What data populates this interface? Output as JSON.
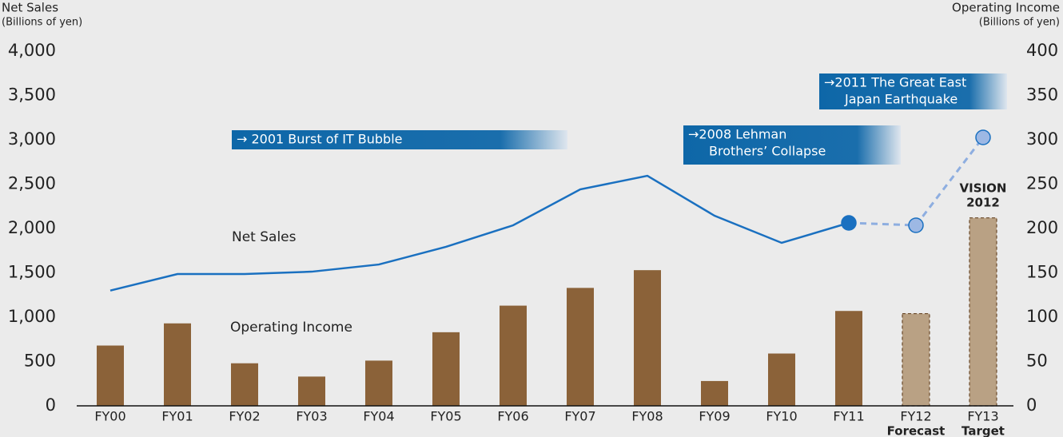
{
  "chart_data": {
    "type": "bar_line",
    "y_label": [
      "Net Sales",
      "(Billions of yen)"
    ],
    "y2_label": [
      "Operating Income",
      "(Billions of yen)"
    ],
    "categories": [
      "FY00",
      "FY01",
      "FY02",
      "FY03",
      "FY04",
      "FY05",
      "FY06",
      "FY07",
      "FY08",
      "FY09",
      "FY10",
      "FY11",
      "FY12",
      "FY13"
    ],
    "category_sublabels": [
      null,
      null,
      null,
      null,
      null,
      null,
      null,
      null,
      null,
      null,
      null,
      null,
      "Forecast",
      "Target"
    ],
    "ylim": [
      0,
      4000
    ],
    "yticks": [
      0,
      {
        "value": 500,
        "label": "500"
      },
      {
        "value": 1000,
        "label": "1,000"
      },
      {
        "value": 1500,
        "label": "1,500"
      },
      {
        "value": 2000,
        "label": "2,000"
      },
      {
        "value": 2500,
        "label": "2,500"
      },
      {
        "value": 3000,
        "label": "3,000"
      },
      {
        "value": 3500,
        "label": "3,500"
      },
      {
        "value": 4000,
        "label": "4,000"
      }
    ],
    "y2lim": [
      0,
      400
    ],
    "y2ticks": [
      0,
      50,
      100,
      150,
      200,
      250,
      300,
      350,
      400
    ],
    "series": [
      {
        "name": "Operating Income",
        "kind": "bar",
        "axis": "y2",
        "color": "#8b6239",
        "values": [
          68,
          93,
          48,
          33,
          51,
          83,
          113,
          133,
          153,
          28,
          59,
          107,
          104,
          212
        ],
        "colors": [
          "#8b6239",
          "#8b6239",
          "#8b6239",
          "#8b6239",
          "#8b6239",
          "#8b6239",
          "#8b6239",
          "#8b6239",
          "#8b6239",
          "#8b6239",
          "#8b6239",
          "#8b6239",
          "#b9a184",
          "#b9a184"
        ]
      },
      {
        "name": "Net Sales",
        "kind": "line",
        "axis": "y",
        "color": "#1a70c0",
        "values": [
          1300,
          1486,
          1486,
          1513,
          1594,
          1793,
          2036,
          2441,
          2594,
          2144,
          1838,
          2063,
          null,
          null
        ]
      },
      {
        "kind": "line",
        "dashed": true,
        "axis": "y",
        "color": "#8eaee0",
        "values": [
          null,
          null,
          null,
          null,
          null,
          null,
          null,
          null,
          null,
          null,
          null,
          2063,
          2036,
          3027
        ],
        "marker_colors": [
          null,
          null,
          null,
          null,
          null,
          null,
          null,
          null,
          null,
          null,
          null,
          "#1a70c0",
          "#9db8e4",
          "#9db8e4"
        ]
      }
    ],
    "annotations": [
      [
        "→ 2001 Burst of IT Bubble"
      ],
      [
        "→2008 Lehman",
        "Brothers’ Collapse"
      ],
      [
        "→2011 The Great East",
        "Japan Earthquake"
      ],
      [
        "VISION",
        "2012"
      ]
    ]
  }
}
